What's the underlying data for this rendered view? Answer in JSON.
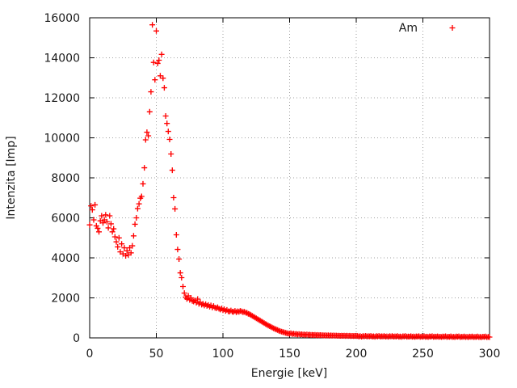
{
  "chart_data": {
    "type": "scatter",
    "title": "",
    "xlabel": "Energie [keV]",
    "ylabel": "Intenzita [Imp]",
    "xlim": [
      0,
      300
    ],
    "ylim": [
      0,
      16000
    ],
    "xticks": [
      0,
      50,
      100,
      150,
      200,
      250,
      300
    ],
    "yticks": [
      0,
      2000,
      4000,
      6000,
      8000,
      10000,
      12000,
      14000,
      16000
    ],
    "grid": true,
    "legend_position": "top-right-inside",
    "marker": {
      "shape": "plus",
      "size": 7
    },
    "series": [
      {
        "name": "Am",
        "x_start": 0,
        "x_step": 1,
        "values": [
          5650,
          6600,
          6400,
          5900,
          6650,
          5600,
          5480,
          5300,
          5850,
          6100,
          5750,
          5900,
          6150,
          5800,
          5500,
          6100,
          5700,
          5300,
          5450,
          5050,
          4800,
          4550,
          5000,
          4300,
          4700,
          4200,
          4500,
          4100,
          4350,
          4150,
          4500,
          4250,
          4600,
          5100,
          5680,
          6000,
          6460,
          6700,
          6980,
          7070,
          7700,
          8500,
          9900,
          10280,
          10100,
          11300,
          12300,
          15650,
          13770,
          12900,
          15340,
          13720,
          13880,
          13100,
          14170,
          12980,
          12500,
          11090,
          10720,
          10320,
          9920,
          9190,
          8380,
          7010,
          6450,
          5150,
          4420,
          3940,
          3250,
          3010,
          2565,
          2240,
          2040,
          1950,
          2100,
          1900,
          2000,
          1850,
          1820,
          1880,
          1760,
          1940,
          1700,
          1780,
          1660,
          1700,
          1620,
          1680,
          1600,
          1640,
          1560,
          1620,
          1520,
          1590,
          1510,
          1480,
          1530,
          1460,
          1420,
          1470,
          1380,
          1430,
          1350,
          1400,
          1330,
          1320,
          1370,
          1310,
          1300,
          1350,
          1280,
          1330,
          1300,
          1350,
          1320,
          1290,
          1300,
          1260,
          1250,
          1200,
          1180,
          1140,
          1100,
          1060,
          1020,
          980,
          940,
          900,
          860,
          820,
          780,
          740,
          700,
          660,
          620,
          585,
          550,
          515,
          480,
          450,
          420,
          390,
          360,
          335,
          310,
          290,
          270,
          250,
          235,
          220,
          210,
          230,
          195,
          215,
          185,
          200,
          175,
          190,
          165,
          180,
          160,
          175,
          155,
          170,
          150,
          160,
          145,
          155,
          140,
          150,
          135,
          145,
          130,
          140,
          128,
          135,
          122,
          132,
          118,
          128,
          115,
          125,
          112,
          122,
          110,
          118,
          106,
          115,
          103,
          112,
          100,
          110,
          98,
          108,
          96,
          105,
          94,
          102,
          92,
          100,
          90,
          98,
          72,
          88,
          62,
          92,
          78,
          102,
          68,
          85,
          75,
          95,
          65,
          82,
          58,
          90,
          74,
          98,
          64,
          80,
          70,
          92,
          62,
          78,
          55,
          86,
          70,
          94,
          60,
          76,
          66,
          88,
          58,
          74,
          52,
          82,
          68,
          90,
          56,
          72,
          62,
          85,
          55,
          70,
          50,
          78,
          65,
          86,
          52,
          68,
          58,
          82,
          52,
          66,
          46,
          75,
          62,
          84,
          48,
          64,
          55,
          78,
          48,
          62,
          44,
          72,
          58,
          80,
          45,
          60,
          52,
          75,
          45,
          58,
          40,
          68,
          55,
          76,
          42,
          56,
          48,
          72,
          42,
          55,
          38,
          65,
          52,
          72,
          40,
          52,
          45,
          68,
          40,
          50,
          35,
          62,
          48,
          70,
          38,
          48,
          42
        ]
      }
    ]
  },
  "colors": {
    "marker": "#ff0000",
    "grid": "#a0a0a0",
    "axis": "#000000",
    "text": "#1a1a1a",
    "background": "#ffffff"
  }
}
